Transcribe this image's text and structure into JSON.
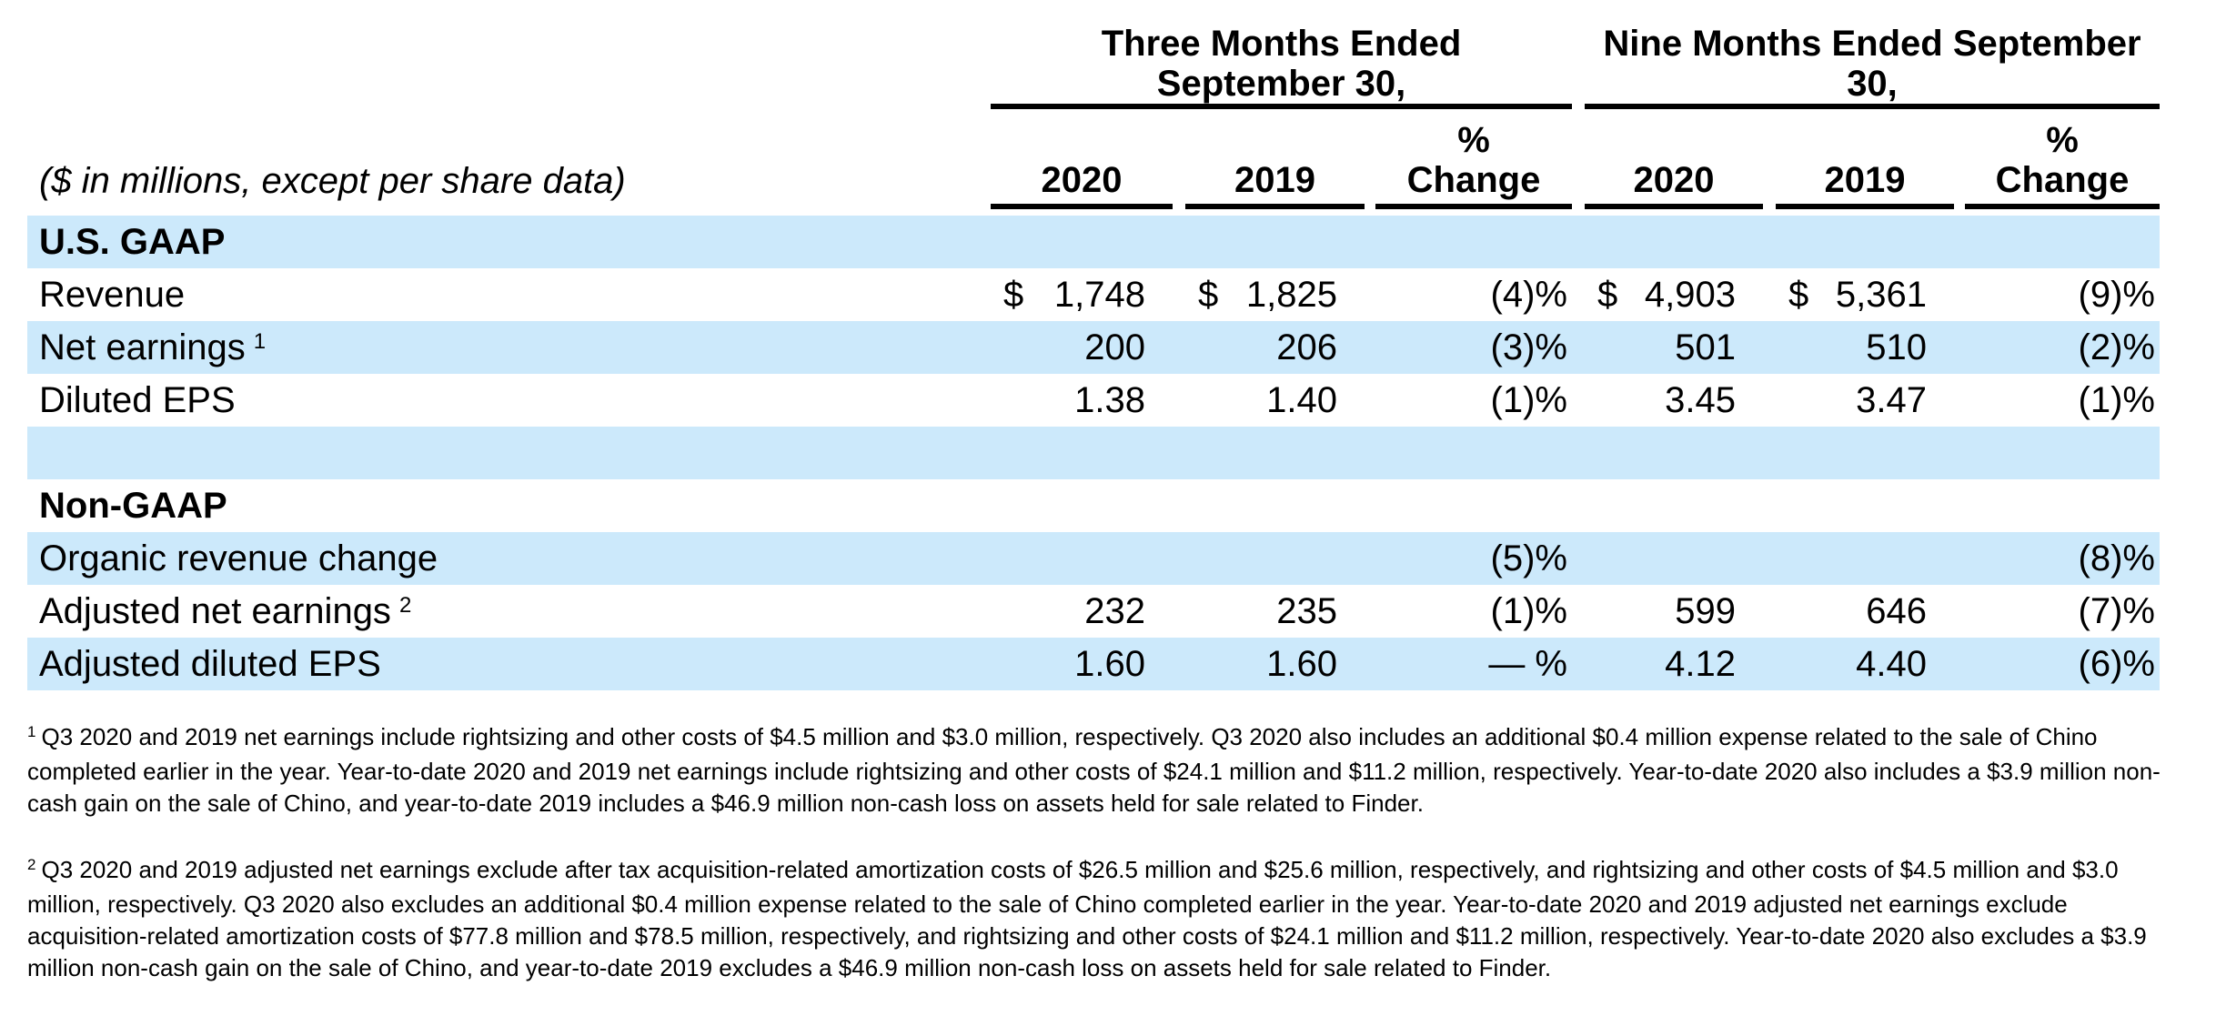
{
  "page": {
    "background_color": "#ffffff",
    "text_color": "#000000",
    "highlight_row_color": "#cce9fb"
  },
  "table": {
    "units_note": "($ in millions, except per share data)",
    "col_groups": [
      {
        "title": "Three Months Ended\nSeptember 30,",
        "columns": [
          "2020",
          "2019",
          "%\nChange"
        ]
      },
      {
        "title": "Nine Months Ended September\n30,",
        "columns": [
          "2020",
          "2019",
          "%\nChange"
        ]
      }
    ],
    "rows": [
      {
        "label": "U.S. GAAP"
      },
      {
        "label": "Revenue",
        "cells": [
          {
            "prefix": "$",
            "value": "1,748"
          },
          {
            "prefix": "$",
            "value": "1,825"
          },
          {
            "value": "(4)%"
          },
          {
            "prefix": "$",
            "value": "4,903"
          },
          {
            "prefix": "$",
            "value": "5,361"
          },
          {
            "value": "(9)%"
          }
        ]
      },
      {
        "label": "Net earnings",
        "sup": "1",
        "cells": [
          {
            "value": "200"
          },
          {
            "value": "206"
          },
          {
            "value": "(3)%"
          },
          {
            "value": "501"
          },
          {
            "value": "510"
          },
          {
            "value": "(2)%"
          }
        ]
      },
      {
        "label": "Diluted EPS",
        "cells": [
          {
            "value": "1.38"
          },
          {
            "value": "1.40"
          },
          {
            "value": "(1)%"
          },
          {
            "value": "3.45"
          },
          {
            "value": "3.47"
          },
          {
            "value": "(1)%"
          }
        ]
      },
      {
        "label": ""
      },
      {
        "label": "Non-GAAP"
      },
      {
        "label": "Organic revenue change",
        "cells": [
          {},
          {},
          {
            "value": "(5)%"
          },
          {},
          {},
          {
            "value": "(8)%"
          }
        ]
      },
      {
        "label": "Adjusted net earnings",
        "sup": "2",
        "cells": [
          {
            "value": "232"
          },
          {
            "value": "235"
          },
          {
            "value": "(1)%"
          },
          {
            "value": "599"
          },
          {
            "value": "646"
          },
          {
            "value": "(7)%"
          }
        ]
      },
      {
        "label": "Adjusted diluted EPS",
        "cells": [
          {
            "value": "1.60"
          },
          {
            "value": "1.60"
          },
          {
            "value": "— %"
          },
          {
            "value": "4.12"
          },
          {
            "value": "4.40"
          },
          {
            "value": "(6)%"
          }
        ]
      }
    ]
  },
  "footnotes": [
    {
      "marker": "1",
      "text": "Q3 2020 and 2019 net earnings include rightsizing and other costs of $4.5 million and $3.0 million, respectively. Q3 2020 also includes an additional $0.4 million expense related to the sale of Chino completed earlier in the year. Year-to-date 2020 and 2019 net earnings include rightsizing and other costs of $24.1 million and $11.2 million, respectively. Year-to-date 2020 also includes a $3.9 million non-cash gain on the sale of Chino, and year-to-date 2019 includes a $46.9 million non-cash loss on assets held for sale related to Finder."
    },
    {
      "marker": "2",
      "text": "Q3 2020 and 2019 adjusted net earnings exclude after tax acquisition-related amortization costs of $26.5 million and $25.6 million, respectively, and rightsizing and other costs of $4.5 million and $3.0 million, respectively. Q3 2020 also excludes an additional $0.4 million expense related to the sale of Chino completed earlier in the year. Year-to-date 2020 and 2019 adjusted net earnings exclude acquisition-related amortization costs of $77.8 million and $78.5 million, respectively, and rightsizing and other costs of $24.1 million and $11.2 million, respectively. Year-to-date 2020 also excludes a $3.9 million non-cash gain on the sale of Chino, and year-to-date 2019 excludes a $46.9 million non-cash loss on assets held for sale related to Finder."
    }
  ]
}
